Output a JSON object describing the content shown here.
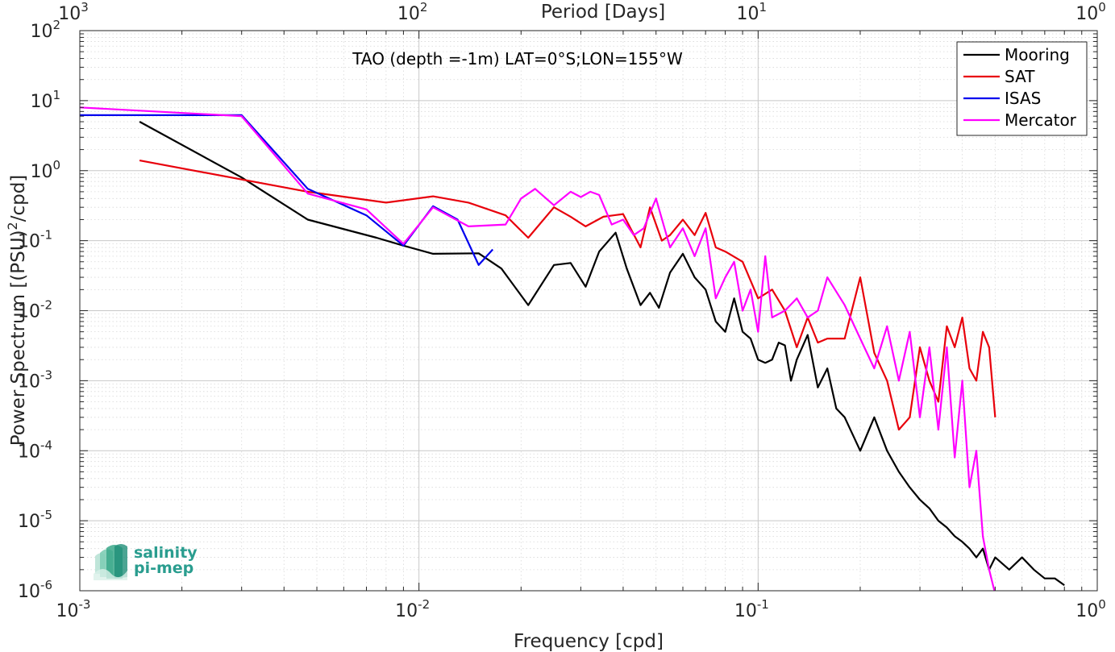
{
  "chart_data": {
    "type": "line",
    "title": "",
    "annotation": "TAO (depth =-1m) LAT=0°S;LON=155°W",
    "xlabel": "Frequency [cpd]",
    "ylabel": "Power Spectrum [(PSU)²/cpd]",
    "x2label": "Period [Days]",
    "xscale": "log",
    "yscale": "log",
    "xlim": [
      0.001,
      1
    ],
    "ylim": [
      1e-06,
      100
    ],
    "grid": true,
    "legend_position": "top-right",
    "x_ticks": [
      {
        "base": "10",
        "exp": "-3"
      },
      {
        "base": "10",
        "exp": "-2"
      },
      {
        "base": "10",
        "exp": "-1"
      },
      {
        "base": "10",
        "exp": "0"
      }
    ],
    "x2_ticks": [
      {
        "base": "10",
        "exp": "3"
      },
      {
        "base": "10",
        "exp": "2"
      },
      {
        "base": "10",
        "exp": "1"
      },
      {
        "base": "10",
        "exp": "0"
      }
    ],
    "y_ticks": [
      {
        "base": "10",
        "exp": "2"
      },
      {
        "base": "10",
        "exp": "1"
      },
      {
        "base": "10",
        "exp": "0"
      },
      {
        "base": "10",
        "exp": "-1"
      },
      {
        "base": "10",
        "exp": "-2"
      },
      {
        "base": "10",
        "exp": "-3"
      },
      {
        "base": "10",
        "exp": "-4"
      },
      {
        "base": "10",
        "exp": "-5"
      },
      {
        "base": "10",
        "exp": "-6"
      }
    ],
    "series": [
      {
        "name": "Mooring",
        "color": "#000000",
        "x": [
          0.0015,
          0.003,
          0.0047,
          0.0075,
          0.009,
          0.011,
          0.015,
          0.0175,
          0.021,
          0.025,
          0.028,
          0.031,
          0.034,
          0.038,
          0.041,
          0.045,
          0.048,
          0.051,
          0.055,
          0.06,
          0.065,
          0.07,
          0.075,
          0.08,
          0.085,
          0.09,
          0.095,
          0.1,
          0.105,
          0.11,
          0.115,
          0.12,
          0.125,
          0.13,
          0.14,
          0.15,
          0.16,
          0.17,
          0.18,
          0.2,
          0.22,
          0.24,
          0.26,
          0.28,
          0.3,
          0.32,
          0.34,
          0.36,
          0.38,
          0.4,
          0.42,
          0.44,
          0.46,
          0.48,
          0.5,
          0.55,
          0.6,
          0.65,
          0.7,
          0.75,
          0.8
        ],
        "y": [
          5,
          0.8,
          0.2,
          0.11,
          0.085,
          0.065,
          0.066,
          0.04,
          0.012,
          0.045,
          0.048,
          0.022,
          0.07,
          0.13,
          0.04,
          0.012,
          0.018,
          0.011,
          0.035,
          0.065,
          0.03,
          0.02,
          0.007,
          0.005,
          0.015,
          0.005,
          0.004,
          0.002,
          0.0018,
          0.002,
          0.0035,
          0.0032,
          0.001,
          0.002,
          0.0045,
          0.0008,
          0.0015,
          0.0004,
          0.0003,
          0.0001,
          0.0003,
          0.0001,
          5e-05,
          3e-05,
          2e-05,
          1.5e-05,
          1e-05,
          8e-06,
          6e-06,
          5e-06,
          4e-06,
          3e-06,
          4e-06,
          2e-06,
          3e-06,
          2e-06,
          3e-06,
          2e-06,
          1.5e-06,
          1.5e-06,
          1.2e-06
        ]
      },
      {
        "name": "SAT",
        "color": "#e8000b",
        "x": [
          0.0015,
          0.0047,
          0.008,
          0.011,
          0.014,
          0.018,
          0.021,
          0.025,
          0.028,
          0.031,
          0.035,
          0.04,
          0.045,
          0.048,
          0.052,
          0.055,
          0.06,
          0.065,
          0.07,
          0.075,
          0.08,
          0.09,
          0.1,
          0.11,
          0.12,
          0.13,
          0.14,
          0.15,
          0.16,
          0.18,
          0.2,
          0.22,
          0.24,
          0.26,
          0.28,
          0.3,
          0.32,
          0.34,
          0.36,
          0.38,
          0.4,
          0.42,
          0.44,
          0.46,
          0.48,
          0.5
        ],
        "y": [
          1.4,
          0.5,
          0.35,
          0.43,
          0.35,
          0.23,
          0.11,
          0.3,
          0.22,
          0.16,
          0.22,
          0.24,
          0.08,
          0.3,
          0.1,
          0.12,
          0.2,
          0.12,
          0.25,
          0.08,
          0.07,
          0.05,
          0.015,
          0.02,
          0.01,
          0.003,
          0.008,
          0.0035,
          0.004,
          0.004,
          0.03,
          0.0025,
          0.001,
          0.0002,
          0.0003,
          0.003,
          0.001,
          0.0005,
          0.006,
          0.003,
          0.008,
          0.0015,
          0.001,
          0.005,
          0.003,
          0.0003
        ]
      },
      {
        "name": "ISAS",
        "color": "#0000ee",
        "x": [
          0.001,
          0.003,
          0.0047,
          0.007,
          0.009,
          0.011,
          0.013,
          0.015,
          0.0165
        ],
        "y": [
          6.2,
          6.2,
          0.55,
          0.23,
          0.085,
          0.31,
          0.2,
          0.045,
          0.075
        ]
      },
      {
        "name": "Mercator",
        "color": "#ff00ff",
        "x": [
          0.001,
          0.003,
          0.0047,
          0.007,
          0.009,
          0.011,
          0.014,
          0.018,
          0.02,
          0.022,
          0.025,
          0.028,
          0.03,
          0.032,
          0.034,
          0.037,
          0.04,
          0.043,
          0.046,
          0.05,
          0.055,
          0.06,
          0.065,
          0.07,
          0.075,
          0.08,
          0.085,
          0.09,
          0.095,
          0.1,
          0.105,
          0.11,
          0.12,
          0.13,
          0.14,
          0.15,
          0.16,
          0.18,
          0.2,
          0.22,
          0.24,
          0.26,
          0.28,
          0.3,
          0.32,
          0.34,
          0.36,
          0.38,
          0.4,
          0.42,
          0.44,
          0.46,
          0.48,
          0.5
        ],
        "y": [
          8,
          6,
          0.47,
          0.28,
          0.09,
          0.3,
          0.16,
          0.17,
          0.4,
          0.55,
          0.32,
          0.5,
          0.42,
          0.5,
          0.45,
          0.17,
          0.2,
          0.12,
          0.15,
          0.4,
          0.08,
          0.15,
          0.06,
          0.15,
          0.015,
          0.03,
          0.05,
          0.01,
          0.02,
          0.005,
          0.06,
          0.008,
          0.01,
          0.015,
          0.008,
          0.01,
          0.03,
          0.012,
          0.004,
          0.0015,
          0.006,
          0.001,
          0.005,
          0.0003,
          0.003,
          0.0002,
          0.003,
          8e-05,
          0.001,
          3e-05,
          0.0001,
          6e-06,
          2e-06,
          9e-07
        ]
      }
    ]
  },
  "logo": {
    "line1": "salinity",
    "line2": "pi-mep"
  }
}
